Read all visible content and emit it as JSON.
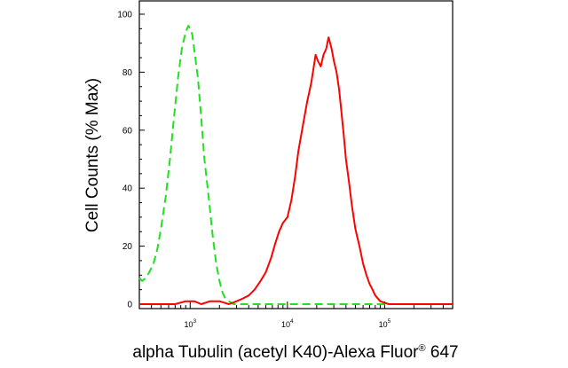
{
  "chart_data": {
    "type": "line",
    "xlabel": "alpha Tubulin (acetyl K40)-Alexa Fluor",
    "xlabel_sup": "®",
    "xlabel_suffix": " 647",
    "ylabel": "Cell Counts (% Max)",
    "xscale": "log",
    "xlim": [
      300,
      500000
    ],
    "ylim": [
      0,
      100
    ],
    "yticks": [
      0,
      20,
      40,
      60,
      80,
      100
    ],
    "xticks": [
      {
        "value": 1000,
        "base": "10",
        "exp": "3"
      },
      {
        "value": 10000,
        "base": "10",
        "exp": "4"
      },
      {
        "value": 100000,
        "base": "10",
        "exp": "5"
      }
    ],
    "grid": false,
    "series": [
      {
        "color": "#21e021",
        "dash": "dashed",
        "x": [
          300,
          320,
          350,
          380,
          420,
          460,
          500,
          560,
          620,
          680,
          750,
          820,
          900,
          960,
          1000,
          1050,
          1100,
          1200,
          1300,
          1400,
          1550,
          1700,
          1850,
          2000,
          2150,
          2300,
          2500,
          2800,
          3500,
          6000,
          20000,
          100000,
          500000
        ],
        "y": [
          9,
          8,
          9,
          11,
          14,
          19,
          26,
          37,
          50,
          64,
          78,
          88,
          94,
          96,
          95,
          93,
          88,
          78,
          64,
          50,
          37,
          24,
          14,
          8,
          4,
          2,
          1,
          0,
          0,
          0,
          0,
          0,
          0
        ]
      },
      {
        "color": "#ff0000",
        "dash": "solid",
        "x": [
          300,
          700,
          900,
          1100,
          1300,
          1600,
          2000,
          2500,
          3000,
          3500,
          4000,
          4600,
          5300,
          6000,
          6800,
          7500,
          8200,
          9000,
          10000,
          11000,
          12000,
          13000,
          14500,
          16000,
          17500,
          18500,
          19500,
          20500,
          22000,
          23500,
          25000,
          26500,
          27500,
          28500,
          30000,
          32000,
          34000,
          36000,
          38000,
          40000,
          43000,
          46000,
          50000,
          55000,
          60000,
          65000,
          70000,
          75000,
          80000,
          90000,
          110000,
          150000,
          300000,
          500000
        ],
        "y": [
          0,
          0,
          1,
          1,
          0,
          1,
          1,
          0,
          1,
          2,
          3,
          5,
          8,
          11,
          16,
          21,
          25,
          28,
          30,
          36,
          44,
          53,
          62,
          70,
          76,
          81,
          86,
          84,
          82,
          86,
          88,
          92,
          90,
          88,
          84,
          80,
          74,
          66,
          58,
          50,
          42,
          34,
          26,
          20,
          14,
          10,
          7,
          5,
          3,
          1,
          0,
          0,
          0,
          0
        ]
      }
    ]
  }
}
